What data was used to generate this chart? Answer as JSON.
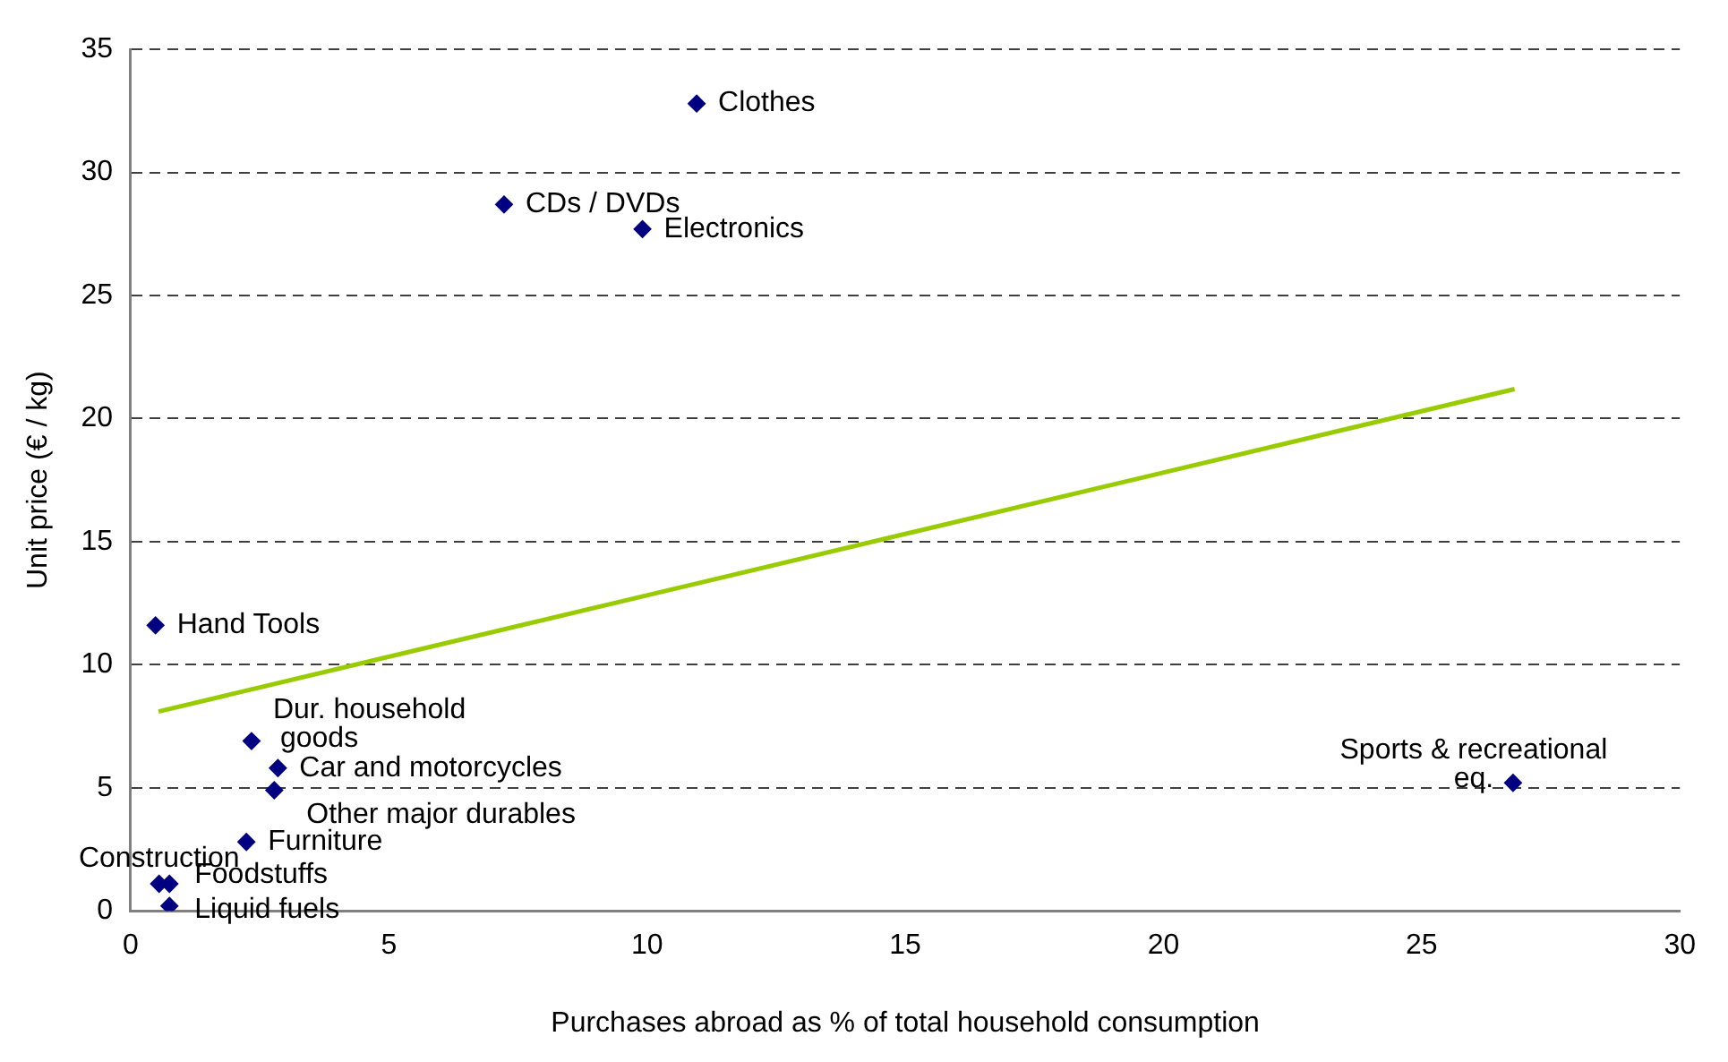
{
  "chart_data": {
    "type": "scatter",
    "xlabel": "Purchases abroad as % of total household consumption",
    "ylabel": "Unit price (€ / kg)",
    "x": [
      10.96,
      7.23,
      9.91,
      0.48,
      2.34,
      2.85,
      2.78,
      2.24,
      0.55,
      0.75,
      0.75,
      26.77
    ],
    "series": [
      {
        "marker": "diamond",
        "color": "#000080",
        "values": [
          32.8,
          28.7,
          27.7,
          11.6,
          6.9,
          5.8,
          4.9,
          2.8,
          1.1,
          1.1,
          0.2,
          5.2
        ]
      },
      {
        "type": "line",
        "color": "#99cc00",
        "x": [
          0.54,
          26.8
        ],
        "values": [
          8.1,
          21.2
        ]
      }
    ],
    "annotations": [
      {
        "text": "Clothes",
        "x": 10.96,
        "y": 32.8
      },
      {
        "text": "CDs / DVDs",
        "x": 7.23,
        "y": 28.7
      },
      {
        "text": "Electronics",
        "x": 9.91,
        "y": 27.7
      },
      {
        "text": "Hand Tools",
        "x": 0.48,
        "y": 11.6
      },
      {
        "text": "Dur. household\ngoods",
        "x": 2.34,
        "y": 6.9
      },
      {
        "text": "Car and motorcycles",
        "x": 2.85,
        "y": 5.8
      },
      {
        "text": "Other major durables",
        "x": 2.78,
        "y": 4.9
      },
      {
        "text": "Furniture",
        "x": 2.24,
        "y": 2.8
      },
      {
        "text": "Construction",
        "x": 0.55,
        "y": 1.1
      },
      {
        "text": "Foodstuffs",
        "x": 0.75,
        "y": 1.1
      },
      {
        "text": "Liquid fuels",
        "x": 0.75,
        "y": 0.2
      },
      {
        "text": "Sports & recreational\neq.",
        "x": 26.77,
        "y": 5.2
      }
    ],
    "xlim": [
      0,
      30
    ],
    "xticks": [
      0,
      5,
      10,
      15,
      20,
      25,
      30
    ],
    "ylim": [
      0,
      35
    ],
    "yticks": [
      0,
      5,
      10,
      15,
      20,
      25,
      30,
      35
    ],
    "grid": "y",
    "legend": false
  }
}
